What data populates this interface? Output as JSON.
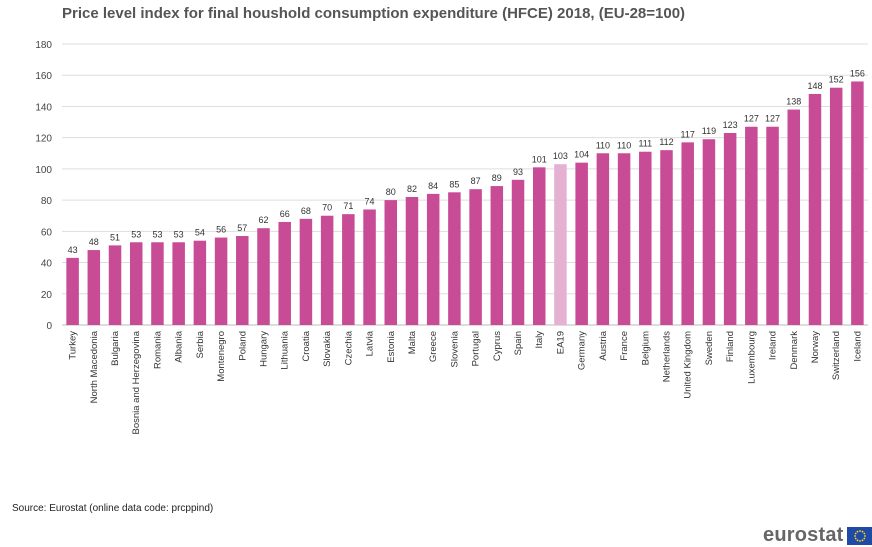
{
  "chart_data": {
    "type": "bar",
    "title": "Price level index for final houshold consumption expenditure (HFCE) 2018, (EU-28=100)",
    "categories": [
      "Turkey",
      "North Macedonia",
      "Bulgaria",
      "Bosnia and Herzegovina",
      "Romania",
      "Albania",
      "Serbia",
      "Montenegro",
      "Poland",
      "Hungary",
      "Lithuania",
      "Croatia",
      "Slovakia",
      "Czechia",
      "Latvia",
      "Estonia",
      "Malta",
      "Greece",
      "Slovenia",
      "Portugal",
      "Cyprus",
      "Spain",
      "Italy",
      "EA19",
      "Germany",
      "Austria",
      "France",
      "Belgium",
      "Netherlands",
      "United Kingdom",
      "Sweden",
      "Finland",
      "Luxembourg",
      "Ireland",
      "Denmark",
      "Norway",
      "Switzerland",
      "Iceland"
    ],
    "values": [
      43,
      48,
      51,
      53,
      53,
      53,
      54,
      56,
      57,
      62,
      66,
      68,
      70,
      71,
      74,
      80,
      82,
      84,
      85,
      87,
      89,
      93,
      101,
      103,
      104,
      110,
      110,
      111,
      112,
      117,
      119,
      123,
      127,
      127,
      138,
      148,
      152,
      156
    ],
    "highlight": "EA19",
    "ylim": [
      0,
      180
    ],
    "yticks": [
      0,
      20,
      40,
      60,
      80,
      100,
      120,
      140,
      160,
      180
    ],
    "grid": true,
    "data_labels": true,
    "colors": {
      "bar": "#c74b95",
      "highlight": "#e5b1d3",
      "grid": "#dddddd"
    }
  },
  "source": "Source: Eurostat (online data code: prcppind)",
  "logo": {
    "text": "eurostat",
    "flag": "eu-flag-icon"
  }
}
